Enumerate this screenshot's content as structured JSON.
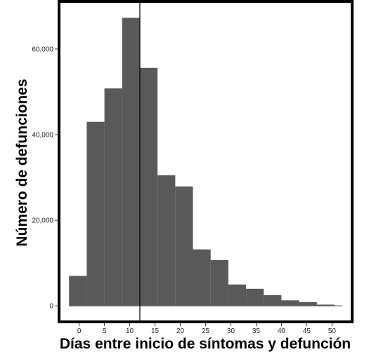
{
  "chart_data": {
    "type": "bar",
    "subtype": "histogram",
    "title": "",
    "xlabel": "Días entre inicio de síntomas y defunción",
    "ylabel": "Número de defunciones",
    "bin_width": 3.5,
    "bins": [
      {
        "x0": -2.0,
        "x1": 1.5,
        "value": 7000
      },
      {
        "x0": 1.5,
        "x1": 5.0,
        "value": 43000
      },
      {
        "x0": 5.0,
        "x1": 8.5,
        "value": 50800
      },
      {
        "x0": 8.5,
        "x1": 12.0,
        "value": 67300
      },
      {
        "x0": 12.0,
        "x1": 15.5,
        "value": 55600
      },
      {
        "x0": 15.5,
        "x1": 19.0,
        "value": 30500
      },
      {
        "x0": 19.0,
        "x1": 22.5,
        "value": 27900
      },
      {
        "x0": 22.5,
        "x1": 26.0,
        "value": 13200
      },
      {
        "x0": 26.0,
        "x1": 29.5,
        "value": 10700
      },
      {
        "x0": 29.5,
        "x1": 33.0,
        "value": 5000
      },
      {
        "x0": 33.0,
        "x1": 36.5,
        "value": 4000
      },
      {
        "x0": 36.5,
        "x1": 40.0,
        "value": 2500
      },
      {
        "x0": 40.0,
        "x1": 43.5,
        "value": 1300
      },
      {
        "x0": 43.5,
        "x1": 47.0,
        "value": 900
      },
      {
        "x0": 47.0,
        "x1": 50.5,
        "value": 300
      },
      {
        "x0": 50.5,
        "x1": 52.0,
        "value": 100
      }
    ],
    "reference_line": {
      "x": 12
    },
    "xticks": [
      0,
      5,
      10,
      15,
      20,
      25,
      30,
      35,
      40,
      45,
      50
    ],
    "xtick_labels": [
      "0",
      "5",
      "10",
      "15",
      "20",
      "25",
      "30",
      "35",
      "40",
      "45",
      "50"
    ],
    "yticks": [
      0,
      20000,
      40000,
      60000
    ],
    "ytick_labels": [
      "0",
      "20,000",
      "40,000",
      "60,000"
    ],
    "xlim": [
      -3.7,
      53.7
    ],
    "ylim": [
      -3400,
      70800
    ],
    "grid": false,
    "legend": "none",
    "colors": {
      "bar": "#595959",
      "reference_line": "#000000",
      "frame": "#000000"
    }
  }
}
